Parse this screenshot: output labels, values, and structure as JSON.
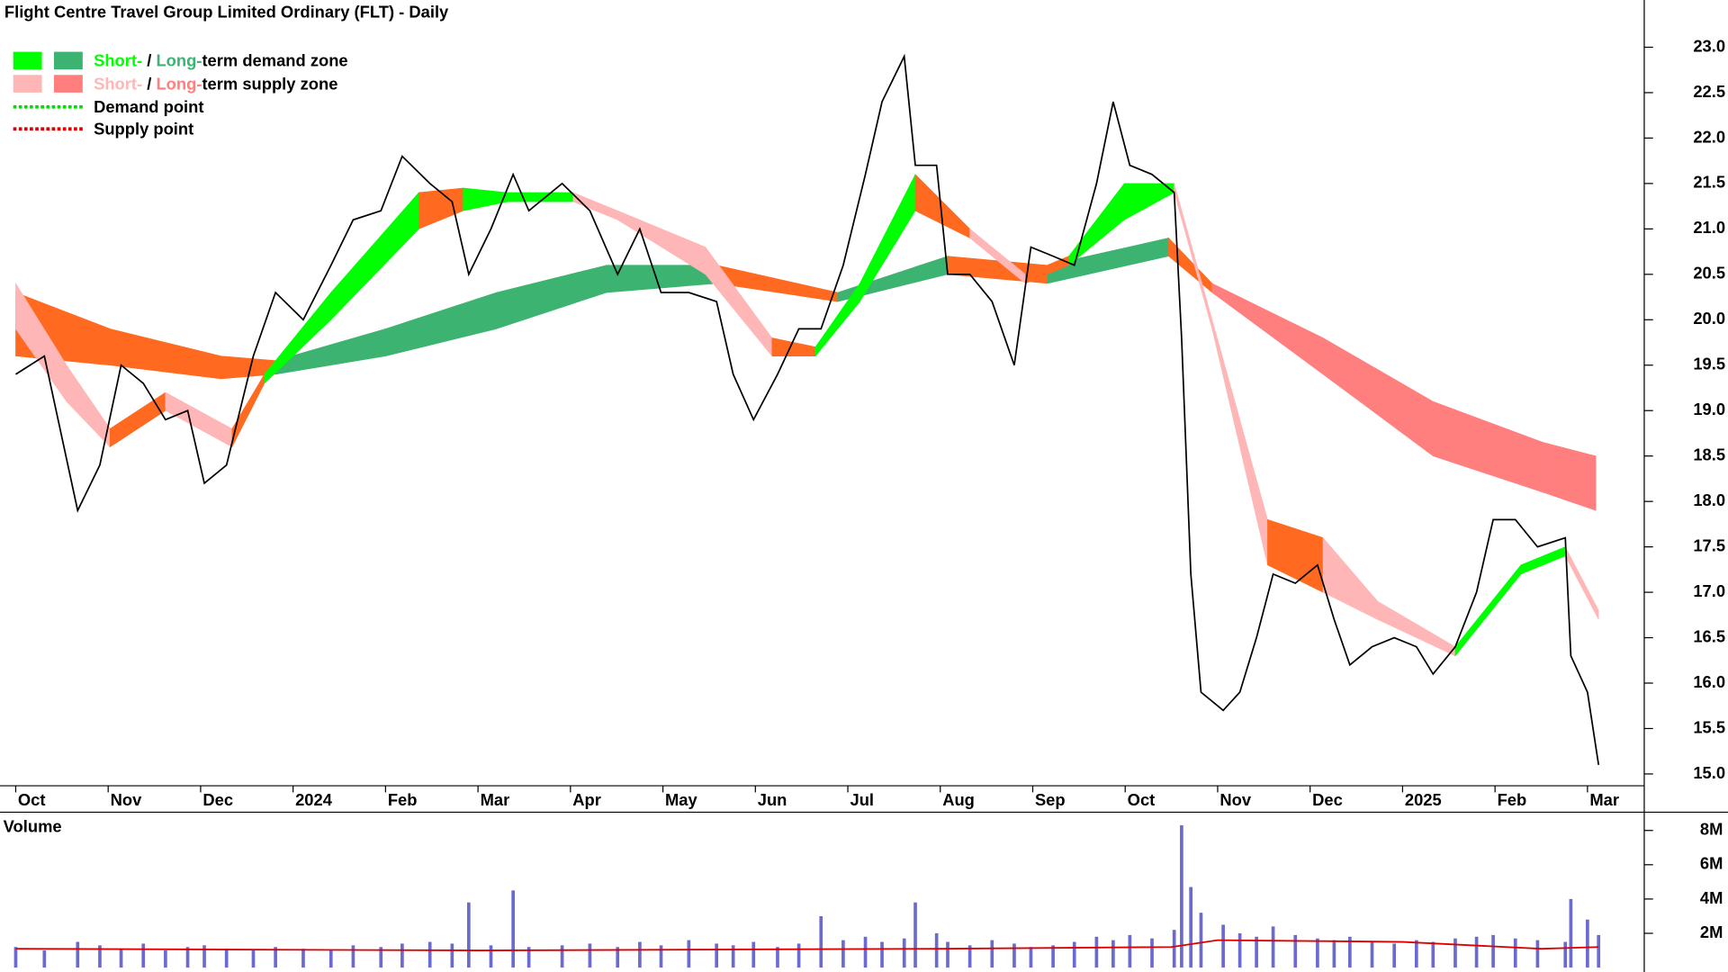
{
  "chart_data": {
    "type": "line",
    "title": "Flight Centre Travel Group Limited Ordinary (FLT) - Daily",
    "legend": [
      {
        "short_label": "Short-",
        "separator": " / ",
        "long_label": "Long-",
        "rest": "term demand zone",
        "short_color": "#00ff00",
        "long_color": "#3cb371"
      },
      {
        "short_label": "Short-",
        "separator": " / ",
        "long_label": "Long-",
        "rest": "term supply zone",
        "short_color": "#ffb6b6",
        "long_color": "#ff7f7f"
      },
      {
        "label": "Demand point",
        "color": "#00dd00"
      },
      {
        "label": "Supply point",
        "color": "#dd0000"
      }
    ],
    "xlim": [
      -0.17,
      17.59
    ],
    "xticks": [
      {
        "value": 0,
        "label": "Oct"
      },
      {
        "value": 1,
        "label": "Nov"
      },
      {
        "value": 2,
        "label": "Dec"
      },
      {
        "value": 3,
        "label": "2024"
      },
      {
        "value": 4,
        "label": "Feb"
      },
      {
        "value": 5,
        "label": "Mar"
      },
      {
        "value": 6,
        "label": "Apr"
      },
      {
        "value": 7,
        "label": "May"
      },
      {
        "value": 8,
        "label": "Jun"
      },
      {
        "value": 9,
        "label": "Jul"
      },
      {
        "value": 10,
        "label": "Aug"
      },
      {
        "value": 11,
        "label": "Sep"
      },
      {
        "value": 12,
        "label": "Oct"
      },
      {
        "value": 13,
        "label": "Nov"
      },
      {
        "value": 14,
        "label": "Dec"
      },
      {
        "value": 15,
        "label": "2025"
      },
      {
        "value": 16,
        "label": "Feb"
      },
      {
        "value": 17,
        "label": "Mar"
      }
    ],
    "ylim": [
      14.87,
      23.52
    ],
    "yticks": [
      {
        "value": 15,
        "label": "15.0"
      },
      {
        "value": 15.5,
        "label": "15.5"
      },
      {
        "value": 16,
        "label": "16.0"
      },
      {
        "value": 16.5,
        "label": "16.5"
      },
      {
        "value": 17,
        "label": "17.0"
      },
      {
        "value": 17.5,
        "label": "17.5"
      },
      {
        "value": 18,
        "label": "18.0"
      },
      {
        "value": 18.5,
        "label": "18.5"
      },
      {
        "value": 19,
        "label": "19.0"
      },
      {
        "value": 19.5,
        "label": "19.5"
      },
      {
        "value": 20,
        "label": "20.0"
      },
      {
        "value": 20.5,
        "label": "20.5"
      },
      {
        "value": 21,
        "label": "21.0"
      },
      {
        "value": 21.5,
        "label": "21.5"
      },
      {
        "value": 22,
        "label": "22.0"
      },
      {
        "value": 22.5,
        "label": "22.5"
      },
      {
        "value": 23,
        "label": "23.0"
      }
    ],
    "x": [
      0,
      0.31,
      0.67,
      0.91,
      1.14,
      1.38,
      1.62,
      1.86,
      2.04,
      2.28,
      2.57,
      2.81,
      3.11,
      3.41,
      3.65,
      3.95,
      4.18,
      4.48,
      4.72,
      4.9,
      5.14,
      5.38,
      5.55,
      5.91,
      6.21,
      6.51,
      6.75,
      6.98,
      7.28,
      7.58,
      7.76,
      7.98,
      8.24,
      8.47,
      8.71,
      8.95,
      9.19,
      9.37,
      9.61,
      9.73,
      9.96,
      10.08,
      10.32,
      10.56,
      10.8,
      10.98,
      11.22,
      11.45,
      11.69,
      11.87,
      12.05,
      12.29,
      12.53,
      12.61,
      12.71,
      12.82,
      13.06,
      13.24,
      13.42,
      13.6,
      13.84,
      14.08,
      14.26,
      14.43,
      14.67,
      14.91,
      15.15,
      15.33,
      15.57,
      15.8,
      15.98,
      16.22,
      16.46,
      16.76,
      16.82,
      17.0,
      17.12
    ],
    "series": [
      {
        "name": "FLT",
        "color": "#000000",
        "values": [
          19.4,
          19.6,
          17.9,
          18.4,
          19.5,
          19.3,
          18.9,
          19.0,
          18.2,
          18.4,
          19.6,
          20.3,
          20.0,
          20.6,
          21.1,
          21.2,
          21.8,
          21.5,
          21.3,
          20.5,
          21.0,
          21.6,
          21.2,
          21.5,
          21.2,
          20.5,
          21.0,
          20.3,
          20.3,
          20.2,
          19.4,
          18.9,
          19.4,
          19.9,
          19.9,
          20.6,
          21.6,
          22.4,
          22.9,
          21.7,
          21.7,
          20.5,
          20.5,
          20.2,
          19.5,
          20.8,
          20.7,
          20.6,
          21.5,
          22.4,
          21.7,
          21.6,
          21.4,
          19.8,
          17.2,
          15.9,
          15.7,
          15.9,
          16.5,
          17.2,
          17.1,
          17.3,
          16.7,
          16.2,
          16.4,
          16.5,
          16.4,
          16.1,
          16.4,
          17.0,
          17.8,
          17.8,
          17.5,
          17.6,
          16.3,
          15.9,
          15.1
        ]
      }
    ],
    "long_zone": {
      "x": [
        0,
        1.02,
        2.22,
        2.81,
        4.0,
        5.2,
        6.39,
        7.58,
        8.89,
        10.08,
        11.16,
        12.47,
        12.94,
        14.14,
        15.33,
        16.52,
        17.09
      ],
      "upper": [
        20.3,
        19.9,
        19.6,
        19.55,
        19.9,
        20.3,
        20.6,
        20.6,
        20.3,
        20.7,
        20.6,
        20.9,
        20.4,
        19.8,
        19.1,
        18.65,
        18.5
      ],
      "lower": [
        19.6,
        19.5,
        19.35,
        19.4,
        19.6,
        19.9,
        20.3,
        20.4,
        20.2,
        20.5,
        20.4,
        20.7,
        20.3,
        19.4,
        18.5,
        18.1,
        17.9
      ],
      "colors": [
        "#ff6a20",
        "#ff6a20",
        "#ff6a20",
        "#3cb371",
        "#3cb371",
        "#3cb371",
        "#3cb371",
        "#ff6a20",
        "#3cb371",
        "#ff6a20",
        "#3cb371",
        "#ff6a20",
        "#ff7f7f",
        "#ff7f7f",
        "#ff7f7f",
        "#ff7f7f"
      ]
    },
    "short_zone": {
      "x": [
        0,
        0.55,
        1.02,
        1.62,
        2.34,
        2.69,
        3.41,
        4.36,
        4.84,
        5.32,
        6.03,
        6.51,
        7.46,
        8.18,
        8.65,
        9.13,
        9.73,
        10.32,
        10.92,
        11.39,
        11.99,
        12.53,
        12.94,
        13.54,
        14.14,
        14.73,
        15.57,
        16.28,
        16.76,
        17.12
      ],
      "upper": [
        20.4,
        19.5,
        18.8,
        19.2,
        18.8,
        19.4,
        20.3,
        21.4,
        21.45,
        21.4,
        21.4,
        21.2,
        20.8,
        19.8,
        19.7,
        20.4,
        21.6,
        21.0,
        20.5,
        20.7,
        21.5,
        21.5,
        20.0,
        17.8,
        17.6,
        16.9,
        16.4,
        17.3,
        17.5,
        16.8
      ],
      "lower": [
        19.9,
        19.1,
        18.6,
        19.0,
        18.6,
        19.3,
        20.0,
        21.0,
        21.2,
        21.3,
        21.3,
        21.1,
        20.5,
        19.6,
        19.6,
        20.2,
        21.2,
        20.9,
        20.4,
        20.6,
        21.1,
        21.4,
        19.9,
        17.3,
        17.0,
        16.7,
        16.3,
        17.2,
        17.4,
        16.7
      ],
      "colors": [
        "#ffb6b6",
        "#ffb6b6",
        "#ff6a20",
        "#ffb6b6",
        "#ff6a20",
        "#00ff00",
        "#00ff00",
        "#ff6a20",
        "#00ff00",
        "#00ff00",
        "#ffb6b6",
        "#ffb6b6",
        "#ffb6b6",
        "#ff6a20",
        "#00ff00",
        "#00ff00",
        "#ff6a20",
        "#ffb6b6",
        "#ff6a20",
        "#00ff00",
        "#00ff00",
        "#ffb6b6",
        "#ffb6b6",
        "#ff6a20",
        "#ffb6b6",
        "#ffb6b6",
        "#00ff00",
        "#00ff00",
        "#ffb6b6"
      ]
    },
    "volume": {
      "label": "Volume",
      "color": "#6a6ad0",
      "ylim": [
        0,
        9000000
      ],
      "yticks": [
        {
          "value": 2000000,
          "label": "2M"
        },
        {
          "value": 4000000,
          "label": "4M"
        },
        {
          "value": 6000000,
          "label": "6M"
        },
        {
          "value": 8000000,
          "label": "8M"
        }
      ],
      "values": [
        1200000,
        1000000,
        1500000,
        1300000,
        1100000,
        1400000,
        1000000,
        1200000,
        1300000,
        1100000,
        1000000,
        1200000,
        1100000,
        1000000,
        1300000,
        1200000,
        1400000,
        1500000,
        1400000,
        3800000,
        1300000,
        4500000,
        1200000,
        1300000,
        1400000,
        1200000,
        1500000,
        1300000,
        1600000,
        1400000,
        1300000,
        1500000,
        1200000,
        1400000,
        3000000,
        1600000,
        1800000,
        1500000,
        1700000,
        3800000,
        2000000,
        1500000,
        1300000,
        1600000,
        1400000,
        1200000,
        1300000,
        1500000,
        1800000,
        1600000,
        1900000,
        1700000,
        2200000,
        8300000,
        4700000,
        3200000,
        2500000,
        2000000,
        1800000,
        2400000,
        1900000,
        1700000,
        1600000,
        1800000,
        1500000,
        1400000,
        1600000,
        1500000,
        1700000,
        1800000,
        1900000,
        1700000,
        1600000,
        1500000,
        4000000,
        2800000,
        1900000
      ],
      "ma_color": "#dd0000",
      "ma_x": [
        0,
        5,
        10,
        12.5,
        13,
        15,
        16.5,
        17.12
      ],
      "ma_values": [
        1100000,
        1000000,
        1100000,
        1200000,
        1600000,
        1500000,
        1100000,
        1200000
      ]
    }
  }
}
